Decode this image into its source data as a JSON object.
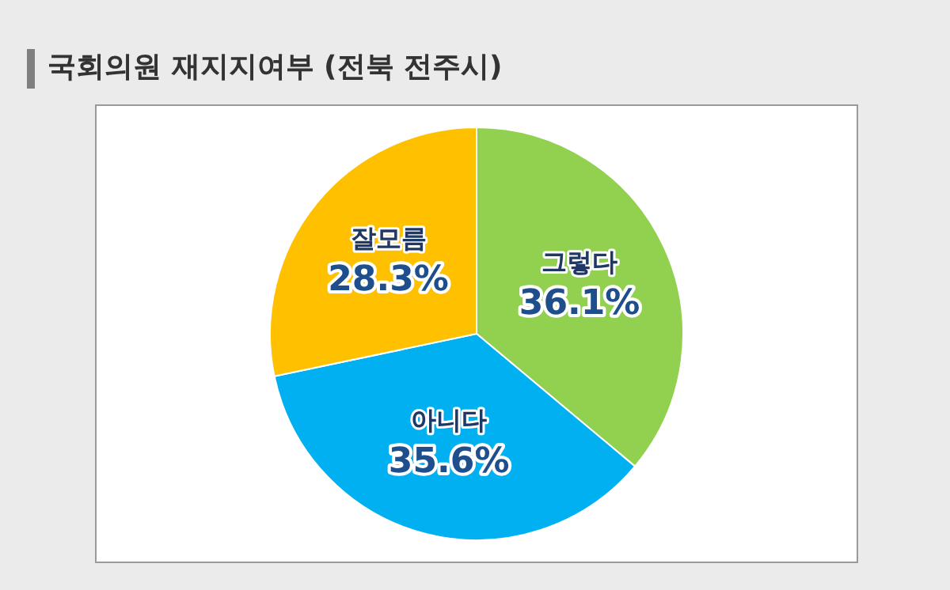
{
  "chart_data": {
    "type": "pie",
    "title": "국회의원 재지지여부 (전북 전주시)",
    "categories": [
      "그렇다",
      "아니다",
      "잘모름"
    ],
    "values": [
      36.1,
      35.6,
      28.3
    ],
    "value_labels": [
      "36.1%",
      "35.6%",
      "28.3%"
    ],
    "colors": [
      "#92d050",
      "#00b0f0",
      "#ffc000"
    ],
    "legend": false
  }
}
